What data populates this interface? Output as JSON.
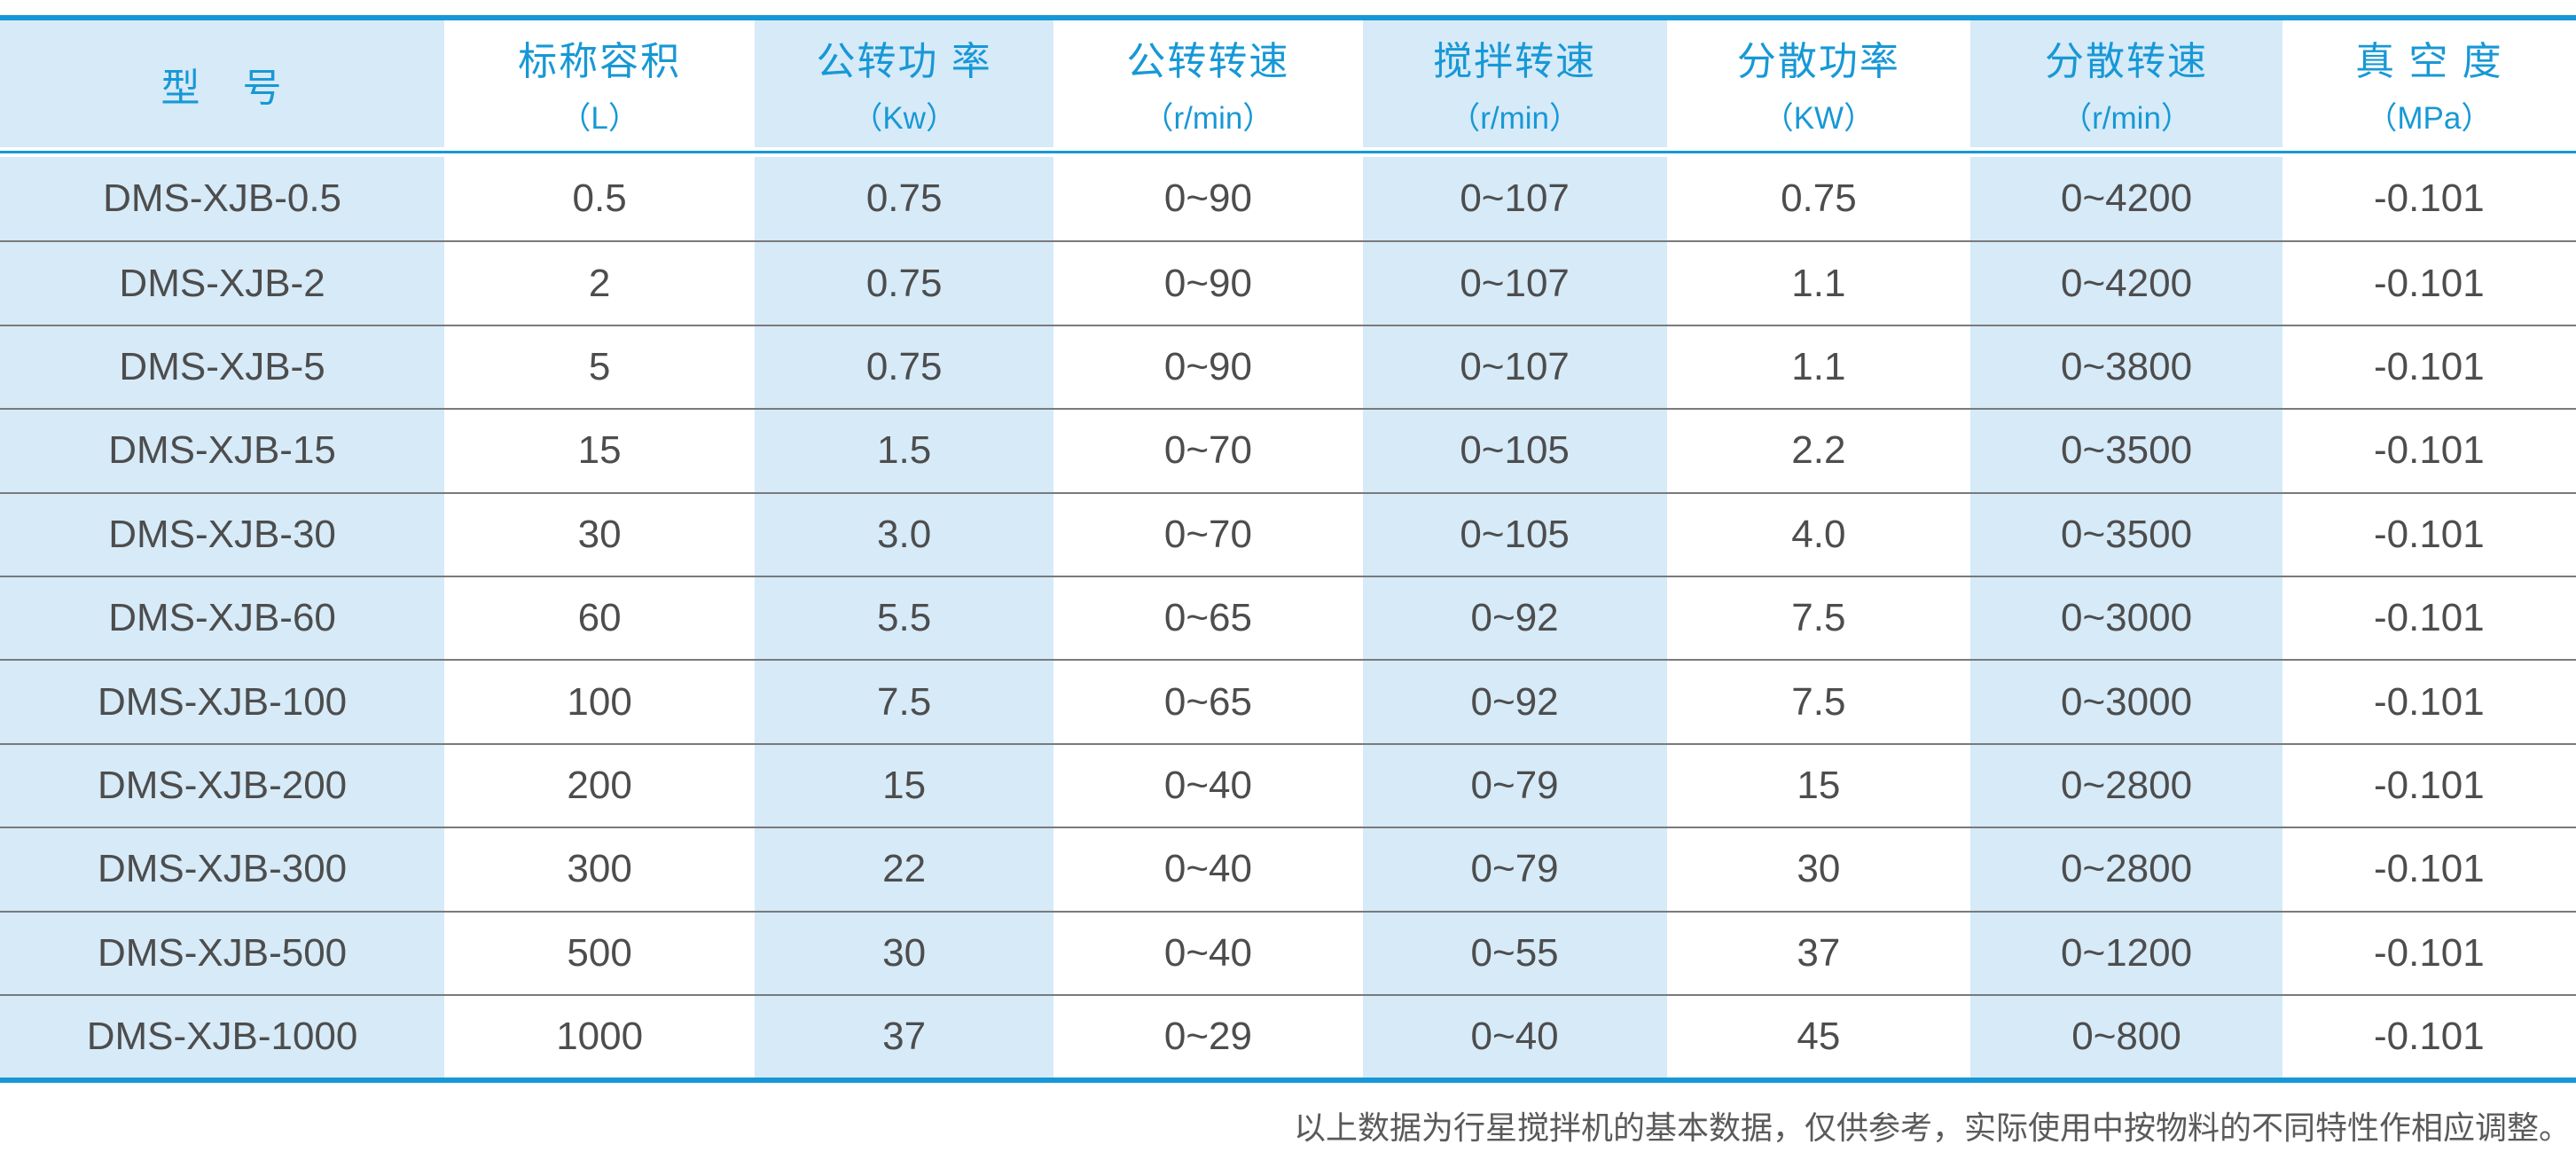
{
  "chart_data": {
    "type": "table",
    "title": "",
    "columns": [
      {
        "title": "型　号",
        "unit": ""
      },
      {
        "title": "标称容积",
        "unit": "（L）"
      },
      {
        "title": "公转功 率",
        "unit": "（Kw）"
      },
      {
        "title": "公转转速",
        "unit": "（r/min）"
      },
      {
        "title": "搅拌转速",
        "unit": "（r/min）"
      },
      {
        "title": "分散功率",
        "unit": "（KW）"
      },
      {
        "title": "分散转速",
        "unit": "（r/min）"
      },
      {
        "title": "真 空 度",
        "unit": "（MPa）"
      }
    ],
    "rows": [
      [
        "DMS-XJB-0.5",
        "0.5",
        "0.75",
        "0~90",
        "0~107",
        "0.75",
        "0~4200",
        "-0.101"
      ],
      [
        "DMS-XJB-2",
        "2",
        "0.75",
        "0~90",
        "0~107",
        "1.1",
        "0~4200",
        "-0.101"
      ],
      [
        "DMS-XJB-5",
        "5",
        "0.75",
        "0~90",
        "0~107",
        "1.1",
        "0~3800",
        "-0.101"
      ],
      [
        "DMS-XJB-15",
        "15",
        "1.5",
        "0~70",
        "0~105",
        "2.2",
        "0~3500",
        "-0.101"
      ],
      [
        "DMS-XJB-30",
        "30",
        "3.0",
        "0~70",
        "0~105",
        "4.0",
        "0~3500",
        "-0.101"
      ],
      [
        "DMS-XJB-60",
        "60",
        "5.5",
        "0~65",
        "0~92",
        "7.5",
        "0~3000",
        "-0.101"
      ],
      [
        "DMS-XJB-100",
        "100",
        "7.5",
        "0~65",
        "0~92",
        "7.5",
        "0~3000",
        "-0.101"
      ],
      [
        "DMS-XJB-200",
        "200",
        "15",
        "0~40",
        "0~79",
        "15",
        "0~2800",
        "-0.101"
      ],
      [
        "DMS-XJB-300",
        "300",
        "22",
        "0~40",
        "0~79",
        "30",
        "0~2800",
        "-0.101"
      ],
      [
        "DMS-XJB-500",
        "500",
        "30",
        "0~40",
        "0~55",
        "37",
        "0~1200",
        "-0.101"
      ],
      [
        "DMS-XJB-1000",
        "1000",
        "37",
        "0~29",
        "0~40",
        "45",
        "0~800",
        "-0.101"
      ]
    ],
    "layout": {
      "column_striping": "odd columns light blue, even columns white",
      "row_separator": "thin gray line",
      "frame": "thick blue bar above header and below last row, blue rule under header"
    }
  },
  "footer": {
    "note": "以上数据为行星搅拌机的基本数据，仅供参考，实际使用中按物料的不同特性作相应调整。"
  },
  "colors": {
    "accent_blue": "#1798d6",
    "light_blue": "#d6eaf8",
    "row_line_gray": "#7a7a7a",
    "cell_text": "#4d4d4d",
    "note_gray": "#5a5a5a"
  }
}
